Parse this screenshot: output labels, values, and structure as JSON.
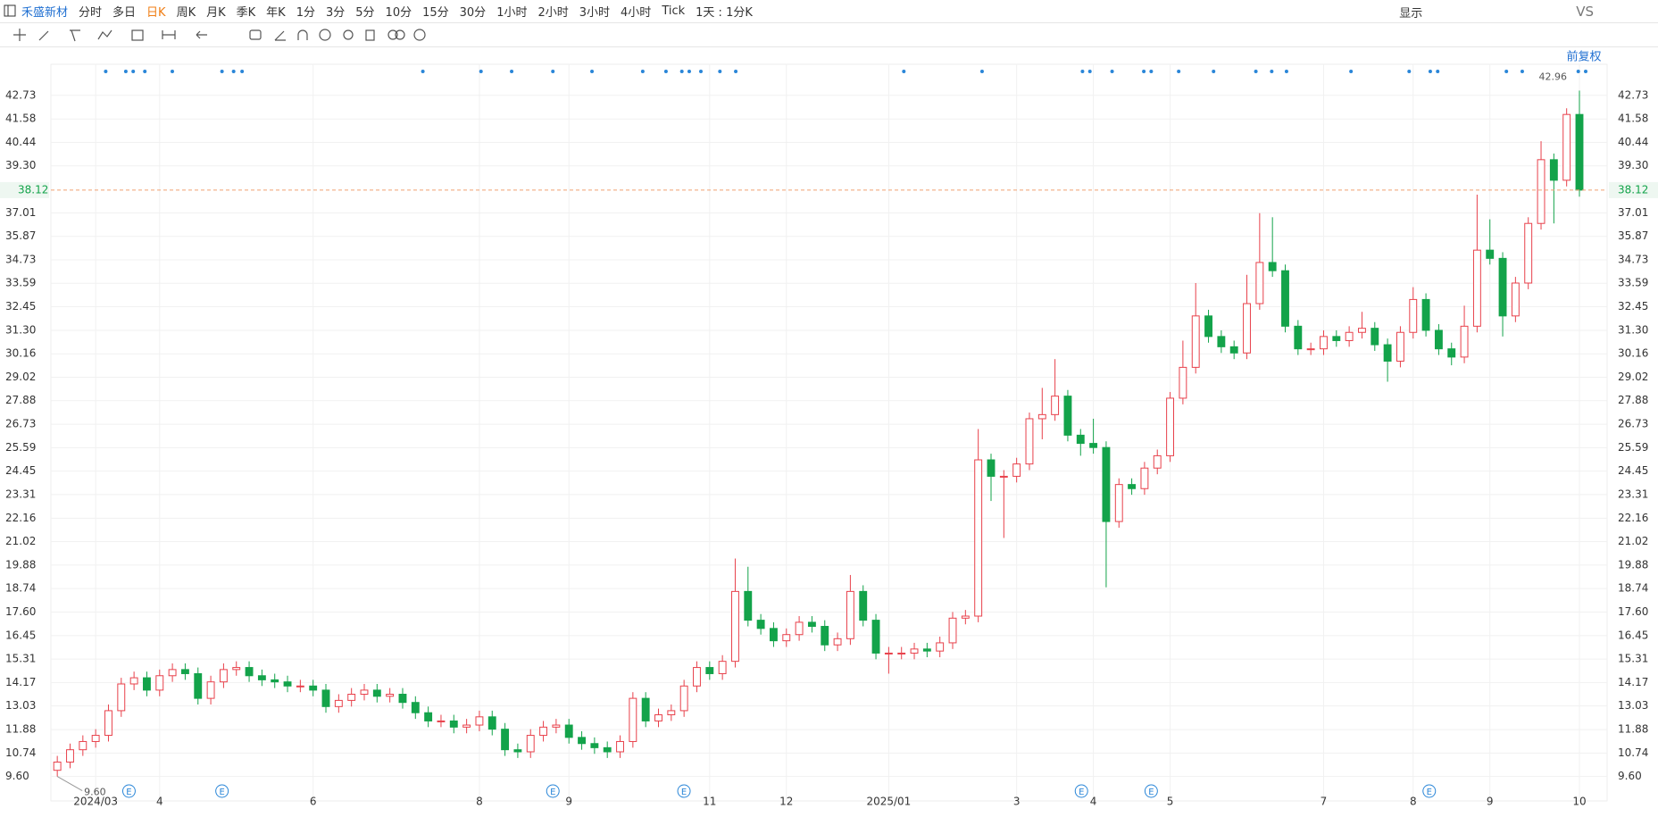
{
  "toolbar": {
    "symbol": "禾盛新材",
    "periods": [
      "分时",
      "多日",
      "日K",
      "周K",
      "月K",
      "季K",
      "年K",
      "1分",
      "3分",
      "5分",
      "10分",
      "15分",
      "30分",
      "1小时",
      "2小时",
      "3小时",
      "4小时",
      "Tick"
    ],
    "interval": "1天 : 1分K",
    "display": "显示",
    "compare": "VS"
  },
  "adjust": "前复权",
  "earnings_marker": "E",
  "chart_data": {
    "type": "candlestick",
    "categories": [
      null,
      null,
      null,
      "2024/03",
      null,
      null,
      null,
      null,
      "4",
      null,
      null,
      null,
      null,
      null,
      null,
      null,
      null,
      null,
      null,
      null,
      "6",
      null,
      null,
      null,
      null,
      null,
      null,
      null,
      null,
      null,
      null,
      null,
      null,
      "8",
      null,
      null,
      null,
      null,
      null,
      null,
      "9",
      null,
      null,
      null,
      null,
      null,
      null,
      null,
      null,
      null,
      null,
      "11",
      null,
      null,
      null,
      null,
      null,
      "12",
      null,
      null,
      null,
      null,
      null,
      null,
      null,
      "2025/01",
      null,
      null,
      null,
      null,
      null,
      null,
      null,
      null,
      null,
      "3",
      null,
      null,
      null,
      null,
      null,
      "4",
      null,
      null,
      null,
      null,
      null,
      "5",
      null,
      null,
      null,
      null,
      null,
      null,
      null,
      null,
      null,
      null,
      null,
      "7",
      null,
      null,
      null,
      null,
      null,
      null,
      "8",
      null,
      null,
      null,
      null,
      null,
      "9",
      null,
      null,
      null,
      null,
      null,
      null,
      "10"
    ],
    "open": [
      9.9,
      10.3,
      10.9,
      11.3,
      11.6,
      12.8,
      14.1,
      14.4,
      13.8,
      14.5,
      14.8,
      14.6,
      13.4,
      14.2,
      14.8,
      14.9,
      14.5,
      14.3,
      14.2,
      14.0,
      14.0,
      13.8,
      13.0,
      13.3,
      13.6,
      13.8,
      13.5,
      13.6,
      13.2,
      12.7,
      12.3,
      12.3,
      12.0,
      12.1,
      12.5,
      11.9,
      10.9,
      10.8,
      11.6,
      12.0,
      12.1,
      11.5,
      11.2,
      11.0,
      10.8,
      11.3,
      13.4,
      12.3,
      12.6,
      12.8,
      14.0,
      14.9,
      14.6,
      15.2,
      18.6,
      17.2,
      16.8,
      16.2,
      16.5,
      17.1,
      16.9,
      16.0,
      16.3,
      18.6,
      17.2,
      15.6,
      15.6,
      15.6,
      15.8,
      15.7,
      16.1,
      17.3,
      17.4,
      25.0,
      24.2,
      24.2,
      24.8,
      27.0,
      27.2,
      28.1,
      26.2,
      25.8,
      25.6,
      22.0,
      23.8,
      23.6,
      24.6,
      25.2,
      28.0,
      29.5,
      32.0,
      31.0,
      30.5,
      30.2,
      32.6,
      34.6,
      34.2,
      31.5,
      30.4,
      30.4,
      31.0,
      30.8,
      31.2,
      31.4,
      30.6,
      29.8,
      31.2,
      32.8,
      31.3,
      30.4,
      30.0,
      31.5,
      35.2,
      34.8,
      32.0,
      33.6,
      36.5,
      39.6,
      38.6,
      41.8
    ],
    "close": [
      10.3,
      10.9,
      11.3,
      11.6,
      12.8,
      14.1,
      14.4,
      13.8,
      14.5,
      14.8,
      14.6,
      13.4,
      14.2,
      14.8,
      14.9,
      14.5,
      14.3,
      14.2,
      14.0,
      14.0,
      13.8,
      13.0,
      13.3,
      13.6,
      13.8,
      13.5,
      13.6,
      13.2,
      12.7,
      12.3,
      12.3,
      12.0,
      12.1,
      12.5,
      11.9,
      10.9,
      10.8,
      11.6,
      12.0,
      12.1,
      11.5,
      11.2,
      11.0,
      10.8,
      11.3,
      13.4,
      12.3,
      12.6,
      12.8,
      14.0,
      14.9,
      14.6,
      15.2,
      18.6,
      17.2,
      16.8,
      16.2,
      16.5,
      17.1,
      16.9,
      16.0,
      16.3,
      18.6,
      17.2,
      15.6,
      15.6,
      15.6,
      15.8,
      15.7,
      16.1,
      17.3,
      17.4,
      25.0,
      24.2,
      24.2,
      24.8,
      27.0,
      27.2,
      28.1,
      26.2,
      25.8,
      25.6,
      22.0,
      23.8,
      23.6,
      24.6,
      25.2,
      28.0,
      29.5,
      32.0,
      31.0,
      30.5,
      30.2,
      32.6,
      34.6,
      34.2,
      31.5,
      30.4,
      30.4,
      31.0,
      30.8,
      31.2,
      31.4,
      30.6,
      29.8,
      31.2,
      32.8,
      31.3,
      30.4,
      30.0,
      31.5,
      35.2,
      34.8,
      32.0,
      33.6,
      36.5,
      39.6,
      38.6,
      41.8,
      38.12
    ],
    "high": [
      10.6,
      11.2,
      11.6,
      11.9,
      13.1,
      14.4,
      14.7,
      14.7,
      14.8,
      15.1,
      15.1,
      14.9,
      14.5,
      15.1,
      15.2,
      15.2,
      14.8,
      14.6,
      14.5,
      14.3,
      14.3,
      14.1,
      13.6,
      13.9,
      14.1,
      14.1,
      13.9,
      13.9,
      13.5,
      13.0,
      12.6,
      12.6,
      12.4,
      12.8,
      12.8,
      12.2,
      11.2,
      11.9,
      12.3,
      12.4,
      12.4,
      11.8,
      11.5,
      11.3,
      11.6,
      13.7,
      13.7,
      12.9,
      13.1,
      14.3,
      15.2,
      15.2,
      15.5,
      20.2,
      19.8,
      17.5,
      17.1,
      16.8,
      17.4,
      17.4,
      17.2,
      16.6,
      19.4,
      18.9,
      17.5,
      15.9,
      15.9,
      16.1,
      16.1,
      16.4,
      17.6,
      17.7,
      26.5,
      25.3,
      24.5,
      25.1,
      27.3,
      28.5,
      29.9,
      28.4,
      26.5,
      27.0,
      25.9,
      24.1,
      24.1,
      24.9,
      25.5,
      28.3,
      30.8,
      33.6,
      32.3,
      31.3,
      30.8,
      34.0,
      37.0,
      36.8,
      34.5,
      31.8,
      30.7,
      31.3,
      31.3,
      31.5,
      32.2,
      31.7,
      30.9,
      31.5,
      33.4,
      33.1,
      31.6,
      30.7,
      32.5,
      37.9,
      36.7,
      35.1,
      33.9,
      36.8,
      40.5,
      39.9,
      42.1,
      42.96
    ],
    "low": [
      9.6,
      10.0,
      10.6,
      11.0,
      11.3,
      12.5,
      13.8,
      13.5,
      13.5,
      14.2,
      14.3,
      13.1,
      13.1,
      13.9,
      14.5,
      14.2,
      14.0,
      13.9,
      13.7,
      13.7,
      13.5,
      12.7,
      12.7,
      13.0,
      13.3,
      13.2,
      13.2,
      12.9,
      12.4,
      12.0,
      12.0,
      11.7,
      11.7,
      11.8,
      11.6,
      10.6,
      10.5,
      10.5,
      11.3,
      11.7,
      11.2,
      10.9,
      10.7,
      10.5,
      10.5,
      11.0,
      12.0,
      12.0,
      12.3,
      12.5,
      13.7,
      14.3,
      14.3,
      14.9,
      16.9,
      16.5,
      15.9,
      15.9,
      16.2,
      16.6,
      15.7,
      15.7,
      16.0,
      16.9,
      15.3,
      14.6,
      15.3,
      15.3,
      15.4,
      15.4,
      15.8,
      17.0,
      17.1,
      23.0,
      21.2,
      23.9,
      24.5,
      26.0,
      26.9,
      25.9,
      25.2,
      25.3,
      18.8,
      21.7,
      23.3,
      23.3,
      24.3,
      24.9,
      27.7,
      29.2,
      30.7,
      30.2,
      29.9,
      29.9,
      32.3,
      33.9,
      31.2,
      30.1,
      30.1,
      30.1,
      30.5,
      30.5,
      30.9,
      30.3,
      28.8,
      29.5,
      30.9,
      31.0,
      30.1,
      29.6,
      29.7,
      31.2,
      34.5,
      31.0,
      31.7,
      33.3,
      36.2,
      36.5,
      38.3,
      37.8
    ],
    "up_color": "#e8414b",
    "down_color": "#13a34a",
    "max_label": "42.96",
    "min_label": "9.60",
    "ylim": [
      8.41,
      44.24
    ],
    "yticks": [
      {
        "value": 9.6,
        "label": "9.60"
      },
      10.74,
      11.88,
      13.03,
      14.17,
      15.31,
      16.45,
      {
        "value": 17.6,
        "label": "17.60"
      },
      18.74,
      19.88,
      21.02,
      22.16,
      23.31,
      24.45,
      25.59,
      26.73,
      27.88,
      29.02,
      30.16,
      {
        "value": 31.3,
        "label": "31.30"
      },
      32.45,
      33.59,
      34.73,
      35.87,
      37.01,
      {
        "value": 39.3,
        "label": "39.30"
      },
      40.44,
      41.58,
      42.73
    ],
    "grid": true
  }
}
